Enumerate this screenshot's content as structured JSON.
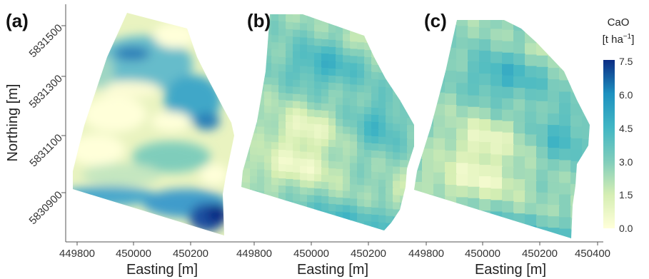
{
  "panels": [
    {
      "label": "(a)",
      "method": "smooth"
    },
    {
      "label": "(b)",
      "method": "fine-grid"
    },
    {
      "label": "(c)",
      "method": "coarse-grid"
    }
  ],
  "axes": {
    "ylabel": "Northing [m]",
    "xlabel": "Easting [m]",
    "y_ticks": [
      "5831500",
      "5831300",
      "5831100",
      "5830900"
    ],
    "x_ticks_panel_a": [
      "449800",
      "450000",
      "450200"
    ],
    "x_ticks_panel_b": [
      "449800",
      "450000",
      "450200"
    ],
    "x_ticks_panel_c": [
      "449800",
      "450000",
      "450200",
      "450400"
    ]
  },
  "legend": {
    "title_line1": "CaO",
    "title_line2": "[t ha",
    "title_sup": "−1",
    "title_end": "]",
    "ticks": [
      "7.5",
      "6.0",
      "4.5",
      "3.0",
      "1.5",
      "0.0"
    ],
    "min": 0.0,
    "max": 7.5
  },
  "colors": {
    "low": "#ffffd9",
    "mid_low": "#c7e9b4",
    "mid": "#41b6c4",
    "mid_high": "#1d91c0",
    "high": "#0c2c84"
  },
  "chart_data": {
    "type": "heatmap",
    "variable": "CaO",
    "unit": "t ha-1",
    "range": [
      0.0,
      7.5
    ],
    "xlabel": "Easting [m]",
    "ylabel": "Northing [m]",
    "xlim": [
      449800,
      450400
    ],
    "ylim": [
      5830900,
      5831500
    ],
    "panels": [
      "(a)",
      "(b)",
      "(c)"
    ]
  }
}
